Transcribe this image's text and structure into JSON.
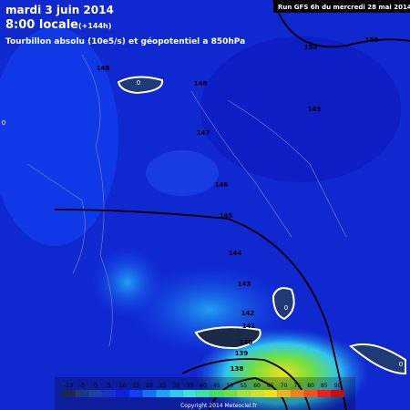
{
  "header": {
    "date": "mardi 3 juin 2014",
    "time": "8:00 locale",
    "lead": "(+144h)",
    "subtitle": "Tourbillon absolu (10e5/s) et géopotentiel a 850hPa",
    "run": "Run GFS 6h du mercredi 28 mai 2014"
  },
  "map": {
    "contour_labels": [
      150,
      150,
      148,
      148,
      149,
      147,
      146,
      145,
      144,
      143,
      142,
      141,
      140,
      139,
      138
    ],
    "vortex_labels": [
      0,
      0,
      0,
      0
    ]
  },
  "colorbar": {
    "ticks": [
      -10,
      -5,
      0,
      5,
      10,
      15,
      20,
      25,
      30,
      35,
      40,
      45,
      50,
      55,
      60,
      65,
      70,
      75,
      80,
      85,
      90
    ],
    "colors": [
      "#1c2a4a",
      "#203a78",
      "#2040a8",
      "#1a32c8",
      "#1020e0",
      "#1040f0",
      "#1870f0",
      "#20a0f0",
      "#30c8f0",
      "#40e0e0",
      "#40e0a0",
      "#40e060",
      "#70e040",
      "#a0e040",
      "#d0e030",
      "#f0e020",
      "#f0b020",
      "#f08020",
      "#f05020",
      "#e82020",
      "#c01010"
    ],
    "copyright": "Copyright 2014 Meteociel.fr"
  }
}
